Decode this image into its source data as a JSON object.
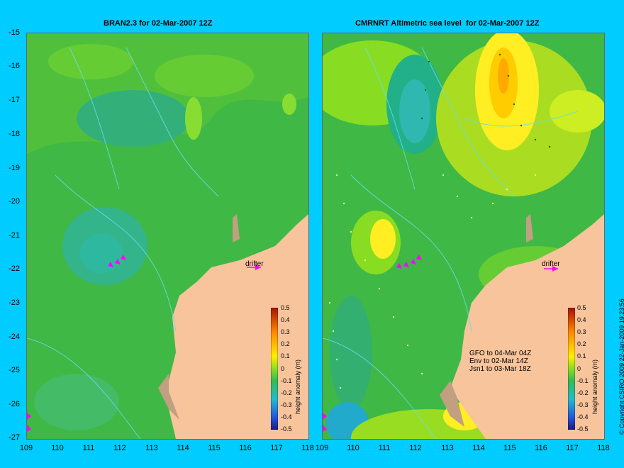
{
  "left_panel": {
    "title": "BRAN2.3 for 02-Mar-2007 12Z",
    "drifter_label": "drifter",
    "colorbar_title": "height anomaly (m)"
  },
  "right_panel": {
    "title": "CMRNRT Altimetric sea level  for 02-Mar-2007 12Z",
    "drifter_label": "drifter",
    "colorbar_title": "height anomaly (m)",
    "legend_lines": [
      "GFO to 04-Mar 04Z",
      "Env to 02-Mar 14Z",
      "Jsn1 to 03-Mar 18Z"
    ]
  },
  "y_ticks": [
    "-15",
    "-16",
    "-17",
    "-18",
    "-19",
    "-20",
    "-21",
    "-22",
    "-23",
    "-24",
    "-25",
    "-26",
    "-27"
  ],
  "x_ticks": [
    "109",
    "110",
    "111",
    "112",
    "113",
    "114",
    "115",
    "116",
    "117",
    "118"
  ],
  "colorbar_ticks": [
    "0.5",
    "0.4",
    "0.3",
    "0.2",
    "0.1",
    "0",
    "-0.1",
    "-0.2",
    "-0.3",
    "-0.4",
    "-0.5"
  ],
  "copyright": "© Copyright CSIRO 2009   22-Jan-2009 19:23:56",
  "colors": {
    "land": "#f8c49c",
    "ocean_green": "#44bb44",
    "anomaly_high": "#ff8800",
    "background": "#00ccff",
    "drifter": "#ff00ff"
  }
}
